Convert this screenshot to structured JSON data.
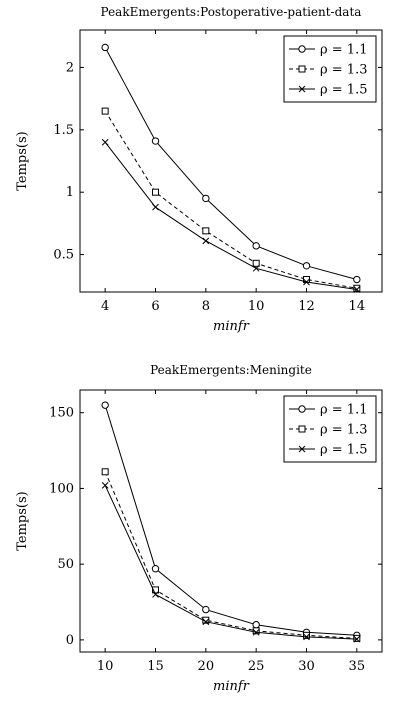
{
  "chart_data": [
    {
      "type": "line",
      "title": "PeakEmergents:Postoperative-patient-data",
      "xlabel": "minfr",
      "ylabel": "Temps(s)",
      "x": [
        4,
        6,
        8,
        10,
        12,
        14
      ],
      "xlim": [
        3,
        15
      ],
      "ylim": [
        0.2,
        2.3
      ],
      "yticks": [
        "0.5",
        "1",
        "1.5",
        "2"
      ],
      "grid": false,
      "legend_position": "top-right",
      "series": [
        {
          "name": "ρ = 1.1",
          "marker": "circle",
          "line": "solid",
          "values": [
            2.16,
            1.41,
            0.95,
            0.57,
            0.41,
            0.3
          ]
        },
        {
          "name": "ρ = 1.3",
          "marker": "square",
          "line": "dashed",
          "values": [
            1.65,
            1.0,
            0.69,
            0.43,
            0.3,
            0.23
          ]
        },
        {
          "name": "ρ = 1.5",
          "marker": "cross",
          "line": "solid",
          "values": [
            1.4,
            0.88,
            0.61,
            0.39,
            0.28,
            0.22
          ]
        }
      ]
    },
    {
      "type": "line",
      "title": "PeakEmergents:Meningite",
      "xlabel": "minfr",
      "ylabel": "Temps(s)",
      "x": [
        10,
        15,
        20,
        25,
        30,
        35
      ],
      "xlim": [
        7.5,
        37.5
      ],
      "ylim": [
        -8,
        165
      ],
      "yticks": [
        "0",
        "50",
        "100",
        "150"
      ],
      "grid": false,
      "legend_position": "top-right",
      "series": [
        {
          "name": "ρ = 1.1",
          "marker": "circle",
          "line": "solid",
          "values": [
            155,
            47,
            20,
            10,
            5,
            3
          ]
        },
        {
          "name": "ρ = 1.3",
          "marker": "square",
          "line": "dashed",
          "values": [
            111,
            33,
            13,
            6,
            3,
            1
          ]
        },
        {
          "name": "ρ = 1.5",
          "marker": "cross",
          "line": "solid",
          "values": [
            102,
            30,
            12,
            5,
            2,
            0.5
          ]
        }
      ]
    }
  ]
}
